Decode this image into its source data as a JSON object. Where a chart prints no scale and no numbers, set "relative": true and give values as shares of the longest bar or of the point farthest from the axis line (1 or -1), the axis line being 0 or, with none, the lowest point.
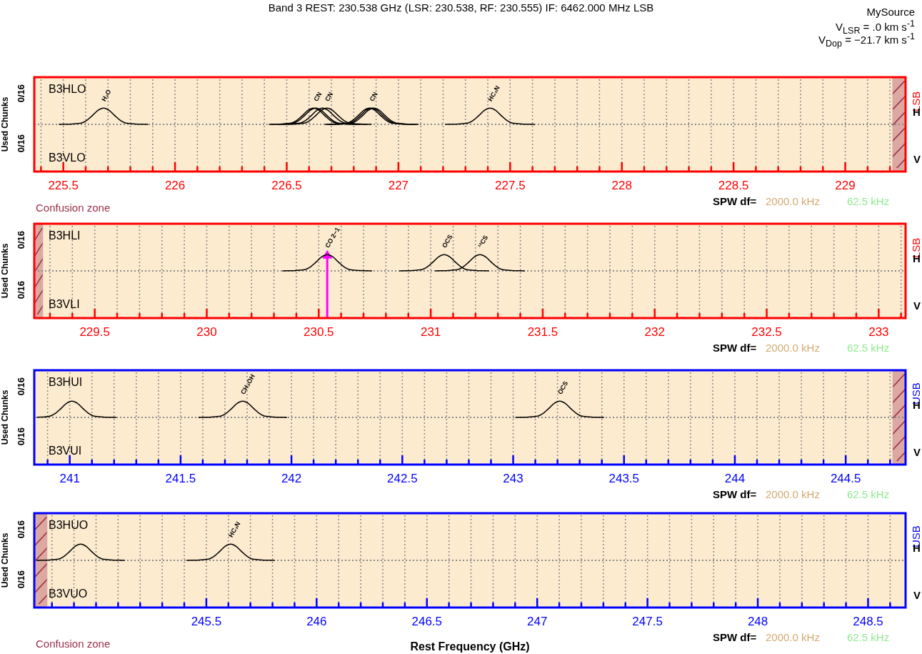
{
  "chart_data": [
    {
      "type": "line",
      "title": "Band 3 REST: 230.538 GHz (LSR: 230.538, RF: 230.555) IF: 6462.000 MHz LSB",
      "ylabel": "Used Chunks",
      "relative": true,
      "grid": "x",
      "xlim": [
        225.37,
        229.27
      ],
      "xticks": [
        {
          "value": 225.4,
          "label": null
        },
        225.5,
        {
          "value": 225.6,
          "label": null
        },
        {
          "value": 225.7,
          "label": null
        },
        {
          "value": 225.8,
          "label": null
        },
        {
          "value": 225.9,
          "label": null
        },
        226,
        {
          "value": 226.1,
          "label": null
        },
        {
          "value": 226.2,
          "label": null
        },
        {
          "value": 226.3,
          "label": null
        },
        {
          "value": 226.4,
          "label": null
        },
        226.5,
        {
          "value": 226.6,
          "label": null
        },
        {
          "value": 226.7,
          "label": null
        },
        {
          "value": 226.8,
          "label": null
        },
        {
          "value": 226.9,
          "label": null
        },
        227,
        {
          "value": 227.1,
          "label": null
        },
        {
          "value": 227.2,
          "label": null
        },
        {
          "value": 227.3,
          "label": null
        },
        {
          "value": 227.4,
          "label": null
        },
        227.5,
        {
          "value": 227.6,
          "label": null
        },
        {
          "value": 227.7,
          "label": null
        },
        {
          "value": 227.8,
          "label": null
        },
        {
          "value": 227.9,
          "label": null
        },
        228,
        {
          "value": 228.1,
          "label": null
        },
        {
          "value": 228.2,
          "label": null
        },
        {
          "value": 228.3,
          "label": null
        },
        {
          "value": 228.4,
          "label": null
        },
        228.5,
        {
          "value": 228.6,
          "label": null
        },
        {
          "value": 228.7,
          "label": null
        },
        {
          "value": 228.8,
          "label": null
        },
        {
          "value": 228.9,
          "label": null
        },
        229,
        {
          "value": 229.1,
          "label": null
        },
        {
          "value": 229.2,
          "label": null
        }
      ],
      "series": [
        {
          "color": "#000000",
          "x": [
            225.48,
            225.58,
            225.605,
            225.63,
            225.655,
            225.68,
            225.705,
            225.73,
            225.755,
            225.78,
            225.88
          ],
          "values": [
            0,
            0.08,
            0.25,
            0.54,
            0.86,
            1,
            0.86,
            0.54,
            0.25,
            0.08,
            0
          ]
        },
        {
          "color": "#000000",
          "x": [
            226.42,
            226.52,
            226.545,
            226.57,
            226.595,
            226.62,
            226.645,
            226.67,
            226.695,
            226.72,
            226.82
          ],
          "values": [
            0,
            0.08,
            0.25,
            0.54,
            0.86,
            1,
            0.86,
            0.54,
            0.25,
            0.08,
            0
          ]
        },
        {
          "color": "#000000",
          "x": [
            226.43,
            226.53,
            226.555,
            226.58,
            226.605,
            226.63,
            226.655,
            226.68,
            226.705,
            226.73,
            226.83
          ],
          "values": [
            0,
            0.08,
            0.25,
            0.54,
            0.86,
            1,
            0.86,
            0.54,
            0.25,
            0.08,
            0
          ]
        },
        {
          "color": "#000000",
          "x": [
            226.46,
            226.56,
            226.585,
            226.61,
            226.635,
            226.66,
            226.685,
            226.71,
            226.735,
            226.76,
            226.86
          ],
          "values": [
            0,
            0.08,
            0.25,
            0.54,
            0.86,
            1,
            0.86,
            0.54,
            0.25,
            0.08,
            0
          ]
        },
        {
          "color": "#000000",
          "x": [
            226.48,
            226.58,
            226.605,
            226.63,
            226.655,
            226.68,
            226.705,
            226.73,
            226.755,
            226.78,
            226.88
          ],
          "values": [
            0,
            0.08,
            0.25,
            0.54,
            0.86,
            1,
            0.86,
            0.54,
            0.25,
            0.08,
            0
          ]
        },
        {
          "color": "#000000",
          "x": [
            226.67,
            226.77,
            226.795,
            226.82,
            226.845,
            226.87,
            226.895,
            226.92,
            226.945,
            226.97,
            227.07
          ],
          "values": [
            0,
            0.08,
            0.25,
            0.54,
            0.86,
            1,
            0.86,
            0.54,
            0.25,
            0.08,
            0
          ]
        },
        {
          "color": "#000000",
          "x": [
            226.68,
            226.78,
            226.805,
            226.83,
            226.855,
            226.88,
            226.905,
            226.93,
            226.955,
            226.98,
            227.08
          ],
          "values": [
            0,
            0.08,
            0.25,
            0.54,
            0.86,
            1,
            0.86,
            0.54,
            0.25,
            0.08,
            0
          ]
        },
        {
          "color": "#000000",
          "x": [
            226.69,
            226.79,
            226.815,
            226.84,
            226.865,
            226.89,
            226.915,
            226.94,
            226.965,
            226.99,
            227.09
          ],
          "values": [
            0,
            0.08,
            0.25,
            0.54,
            0.86,
            1,
            0.86,
            0.54,
            0.25,
            0.08,
            0
          ]
        },
        {
          "color": "#000000",
          "x": [
            227.21,
            227.31,
            227.335,
            227.36,
            227.385,
            227.41,
            227.435,
            227.46,
            227.485,
            227.51,
            227.61
          ],
          "values": [
            0,
            0.08,
            0.25,
            0.54,
            0.86,
            1,
            0.86,
            0.54,
            0.25,
            0.08,
            0
          ]
        }
      ],
      "ref_lines": [
        {
          "axis": "y",
          "value": 0,
          "color": "#888888",
          "line_style": "dotted"
        }
      ],
      "bands": [
        {
          "axis": "x",
          "from": 229.21,
          "to": 229.27,
          "color": "#9b2d4a"
        }
      ],
      "annotations": [
        "0/16",
        "0/16",
        "B3HLO",
        "B3VLO",
        "LSB",
        "H",
        "V",
        "SPW df=",
        "2000.0 kHz",
        "62.5 kHz",
        "Confusion zone",
        "MySource",
        "V$_{LSR}$ = .0 km s$^{-1}$",
        "V$_{Dop}$ = −21.7 km s$^{-1}$",
        {
          "text": "H₂O",
          "x": 225.68,
          "y": 1
        },
        {
          "text": "CN",
          "x": 226.63,
          "y": 1
        },
        {
          "text": "CN",
          "x": 226.68,
          "y": 1
        },
        {
          "text": "CN",
          "x": 226.88,
          "y": 1
        },
        {
          "text": "HC₃N",
          "x": 227.41,
          "y": 1
        }
      ]
    },
    {
      "type": "line",
      "ylabel": "Used Chunks",
      "relative": true,
      "grid": "x",
      "xlim": [
        229.23,
        233.12
      ],
      "xticks": [
        {
          "value": 229.3,
          "label": null
        },
        {
          "value": 229.4,
          "label": null
        },
        229.5,
        {
          "value": 229.6,
          "label": null
        },
        {
          "value": 229.7,
          "label": null
        },
        {
          "value": 229.8,
          "label": null
        },
        {
          "value": 229.9,
          "label": null
        },
        230,
        {
          "value": 230.1,
          "label": null
        },
        {
          "value": 230.2,
          "label": null
        },
        {
          "value": 230.3,
          "label": null
        },
        {
          "value": 230.4,
          "label": null
        },
        230.5,
        {
          "value": 230.6,
          "label": null
        },
        {
          "value": 230.7,
          "label": null
        },
        {
          "value": 230.8,
          "label": null
        },
        {
          "value": 230.9,
          "label": null
        },
        231,
        {
          "value": 231.1,
          "label": null
        },
        {
          "value": 231.2,
          "label": null
        },
        {
          "value": 231.3,
          "label": null
        },
        {
          "value": 231.4,
          "label": null
        },
        231.5,
        {
          "value": 231.6,
          "label": null
        },
        {
          "value": 231.7,
          "label": null
        },
        {
          "value": 231.8,
          "label": null
        },
        {
          "value": 231.9,
          "label": null
        },
        232,
        {
          "value": 232.1,
          "label": null
        },
        {
          "value": 232.2,
          "label": null
        },
        {
          "value": 232.3,
          "label": null
        },
        {
          "value": 232.4,
          "label": null
        },
        232.5,
        {
          "value": 232.6,
          "label": null
        },
        {
          "value": 232.7,
          "label": null
        },
        {
          "value": 232.8,
          "label": null
        },
        {
          "value": 232.9,
          "label": null
        },
        233,
        {
          "value": 233.1,
          "label": null
        }
      ],
      "series": [
        {
          "color": "#000000",
          "x": [
            230.338,
            230.438,
            230.463,
            230.488,
            230.513,
            230.538,
            230.563,
            230.588,
            230.613,
            230.638,
            230.738
          ],
          "values": [
            0,
            0.08,
            0.25,
            0.54,
            0.86,
            1,
            0.86,
            0.54,
            0.25,
            0.08,
            0
          ]
        },
        {
          "color": "#000000",
          "x": [
            230.86,
            230.96,
            230.985,
            231.01,
            231.035,
            231.06,
            231.085,
            231.11,
            231.135,
            231.16,
            231.26
          ],
          "values": [
            0,
            0.08,
            0.25,
            0.54,
            0.86,
            1,
            0.86,
            0.54,
            0.25,
            0.08,
            0
          ]
        },
        {
          "color": "#000000",
          "x": [
            231.02,
            231.12,
            231.145,
            231.17,
            231.195,
            231.22,
            231.245,
            231.27,
            231.295,
            231.32,
            231.42
          ],
          "values": [
            0,
            0.08,
            0.25,
            0.54,
            0.86,
            1,
            0.86,
            0.54,
            0.25,
            0.08,
            0
          ]
        }
      ],
      "ref_lines": [
        {
          "axis": "y",
          "value": 0,
          "color": "#888888",
          "line_style": "dotted"
        },
        {
          "axis": "x",
          "value": 230.538,
          "color": "#ff00ff"
        }
      ],
      "bands": [
        {
          "axis": "x",
          "from": 229.23,
          "to": 229.27,
          "color": "#9b2d4a"
        }
      ],
      "annotations": [
        "0/16",
        "0/16",
        "B3HLI",
        "B3VLI",
        "LSB",
        "H",
        "V",
        "SPW df=",
        "2000.0 kHz",
        "62.5 kHz",
        {
          "text": "CO 2−1",
          "x": 230.538,
          "y": 1
        },
        {
          "text": "OCS",
          "x": 231.06,
          "y": 1
        },
        {
          "text": "¹³CS",
          "x": 231.22,
          "y": 1
        }
      ]
    },
    {
      "type": "line",
      "ylabel": "Used Chunks",
      "relative": true,
      "grid": "x",
      "xlim": [
        240.84,
        244.77
      ],
      "xticks": [
        {
          "value": 240.9,
          "label": null
        },
        241,
        {
          "value": 241.1,
          "label": null
        },
        {
          "value": 241.2,
          "label": null
        },
        {
          "value": 241.3,
          "label": null
        },
        {
          "value": 241.4,
          "label": null
        },
        241.5,
        {
          "value": 241.6,
          "label": null
        },
        {
          "value": 241.7,
          "label": null
        },
        {
          "value": 241.8,
          "label": null
        },
        {
          "value": 241.9,
          "label": null
        },
        242,
        {
          "value": 242.1,
          "label": null
        },
        {
          "value": 242.2,
          "label": null
        },
        {
          "value": 242.3,
          "label": null
        },
        {
          "value": 242.4,
          "label": null
        },
        242.5,
        {
          "value": 242.6,
          "label": null
        },
        {
          "value": 242.7,
          "label": null
        },
        {
          "value": 242.8,
          "label": null
        },
        {
          "value": 242.9,
          "label": null
        },
        243,
        {
          "value": 243.1,
          "label": null
        },
        {
          "value": 243.2,
          "label": null
        },
        {
          "value": 243.3,
          "label": null
        },
        {
          "value": 243.4,
          "label": null
        },
        243.5,
        {
          "value": 243.6,
          "label": null
        },
        {
          "value": 243.7,
          "label": null
        },
        {
          "value": 243.8,
          "label": null
        },
        {
          "value": 243.9,
          "label": null
        },
        244,
        {
          "value": 244.1,
          "label": null
        },
        {
          "value": 244.2,
          "label": null
        },
        {
          "value": 244.3,
          "label": null
        },
        {
          "value": 244.4,
          "label": null
        },
        244.5,
        {
          "value": 244.6,
          "label": null
        },
        {
          "value": 244.7,
          "label": null
        }
      ],
      "series": [
        {
          "color": "#000000",
          "x": [
            240.85,
            240.91,
            240.935,
            240.96,
            240.985,
            241.01,
            241.035,
            241.06,
            241.085,
            241.11,
            241.21
          ],
          "values": [
            0.01,
            0.08,
            0.25,
            0.54,
            0.86,
            1,
            0.86,
            0.54,
            0.25,
            0.08,
            0
          ]
        },
        {
          "color": "#000000",
          "x": [
            241.58,
            241.68,
            241.705,
            241.73,
            241.755,
            241.78,
            241.805,
            241.83,
            241.855,
            241.88,
            241.98
          ],
          "values": [
            0,
            0.08,
            0.25,
            0.54,
            0.86,
            1,
            0.86,
            0.54,
            0.25,
            0.08,
            0
          ]
        },
        {
          "color": "#000000",
          "x": [
            243.01,
            243.11,
            243.135,
            243.16,
            243.185,
            243.21,
            243.235,
            243.26,
            243.285,
            243.31,
            243.41
          ],
          "values": [
            0,
            0.08,
            0.25,
            0.54,
            0.86,
            1,
            0.86,
            0.54,
            0.25,
            0.08,
            0
          ]
        }
      ],
      "ref_lines": [
        {
          "axis": "y",
          "value": 0,
          "color": "#888888",
          "line_style": "dotted"
        }
      ],
      "bands": [
        {
          "axis": "x",
          "from": 244.71,
          "to": 244.77,
          "color": "#9b2d4a"
        }
      ],
      "annotations": [
        "0/16",
        "0/16",
        "B3HUI",
        "B3VUI",
        "USB",
        "H",
        "V",
        "SPW df=",
        "2000.0 kHz",
        "62.5 kHz",
        {
          "text": "CH₃OH",
          "x": 241.78,
          "y": 1
        },
        {
          "text": "OCS",
          "x": 243.21,
          "y": 1
        }
      ]
    },
    {
      "type": "line",
      "ylabel": "Used Chunks",
      "xlabel": "Rest Frequency (GHz)",
      "relative": true,
      "grid": "x",
      "xlim": [
        244.72,
        248.67
      ],
      "xticks": [
        {
          "value": 244.8,
          "label": null
        },
        {
          "value": 244.9,
          "label": null
        },
        {
          "value": 245,
          "label": null
        },
        {
          "value": 245.1,
          "label": null
        },
        {
          "value": 245.2,
          "label": null
        },
        {
          "value": 245.3,
          "label": null
        },
        {
          "value": 245.4,
          "label": null
        },
        245.5,
        {
          "value": 245.6,
          "label": null
        },
        {
          "value": 245.7,
          "label": null
        },
        {
          "value": 245.8,
          "label": null
        },
        {
          "value": 245.9,
          "label": null
        },
        246,
        {
          "value": 246.1,
          "label": null
        },
        {
          "value": 246.2,
          "label": null
        },
        {
          "value": 246.3,
          "label": null
        },
        {
          "value": 246.4,
          "label": null
        },
        246.5,
        {
          "value": 246.6,
          "label": null
        },
        {
          "value": 246.7,
          "label": null
        },
        {
          "value": 246.8,
          "label": null
        },
        {
          "value": 246.9,
          "label": null
        },
        247,
        {
          "value": 247.1,
          "label": null
        },
        {
          "value": 247.2,
          "label": null
        },
        {
          "value": 247.3,
          "label": null
        },
        {
          "value": 247.4,
          "label": null
        },
        247.5,
        {
          "value": 247.6,
          "label": null
        },
        {
          "value": 247.7,
          "label": null
        },
        {
          "value": 247.8,
          "label": null
        },
        {
          "value": 247.9,
          "label": null
        },
        248,
        {
          "value": 248.1,
          "label": null
        },
        {
          "value": 248.2,
          "label": null
        },
        {
          "value": 248.3,
          "label": null
        },
        {
          "value": 248.4,
          "label": null
        },
        248.5,
        {
          "value": 248.6,
          "label": null
        }
      ],
      "series": [
        {
          "color": "#000000",
          "x": [
            244.73,
            244.83,
            244.855,
            244.88,
            244.905,
            244.93,
            244.955,
            244.98,
            245.005,
            245.03,
            245.13
          ],
          "values": [
            0,
            0.08,
            0.25,
            0.54,
            0.86,
            1,
            0.86,
            0.54,
            0.25,
            0.08,
            0
          ]
        },
        {
          "color": "#000000",
          "x": [
            245.41,
            245.51,
            245.535,
            245.56,
            245.585,
            245.61,
            245.635,
            245.66,
            245.685,
            245.71,
            245.81
          ],
          "values": [
            0,
            0.08,
            0.25,
            0.54,
            0.86,
            1,
            0.86,
            0.54,
            0.25,
            0.08,
            0
          ]
        }
      ],
      "ref_lines": [
        {
          "axis": "y",
          "value": 0,
          "color": "#888888",
          "line_style": "dotted"
        }
      ],
      "bands": [
        {
          "axis": "x",
          "from": 244.72,
          "to": 244.78,
          "color": "#9b2d4a"
        }
      ],
      "annotations": [
        "0/16",
        "0/16",
        "B3HUO",
        "B3VUO",
        "USB",
        "H",
        "V",
        "SPW df=",
        "2000.0 kHz",
        "62.5 kHz",
        "Confusion zone",
        {
          "text": "HC₃N",
          "x": 245.61,
          "y": 1
        }
      ]
    }
  ]
}
